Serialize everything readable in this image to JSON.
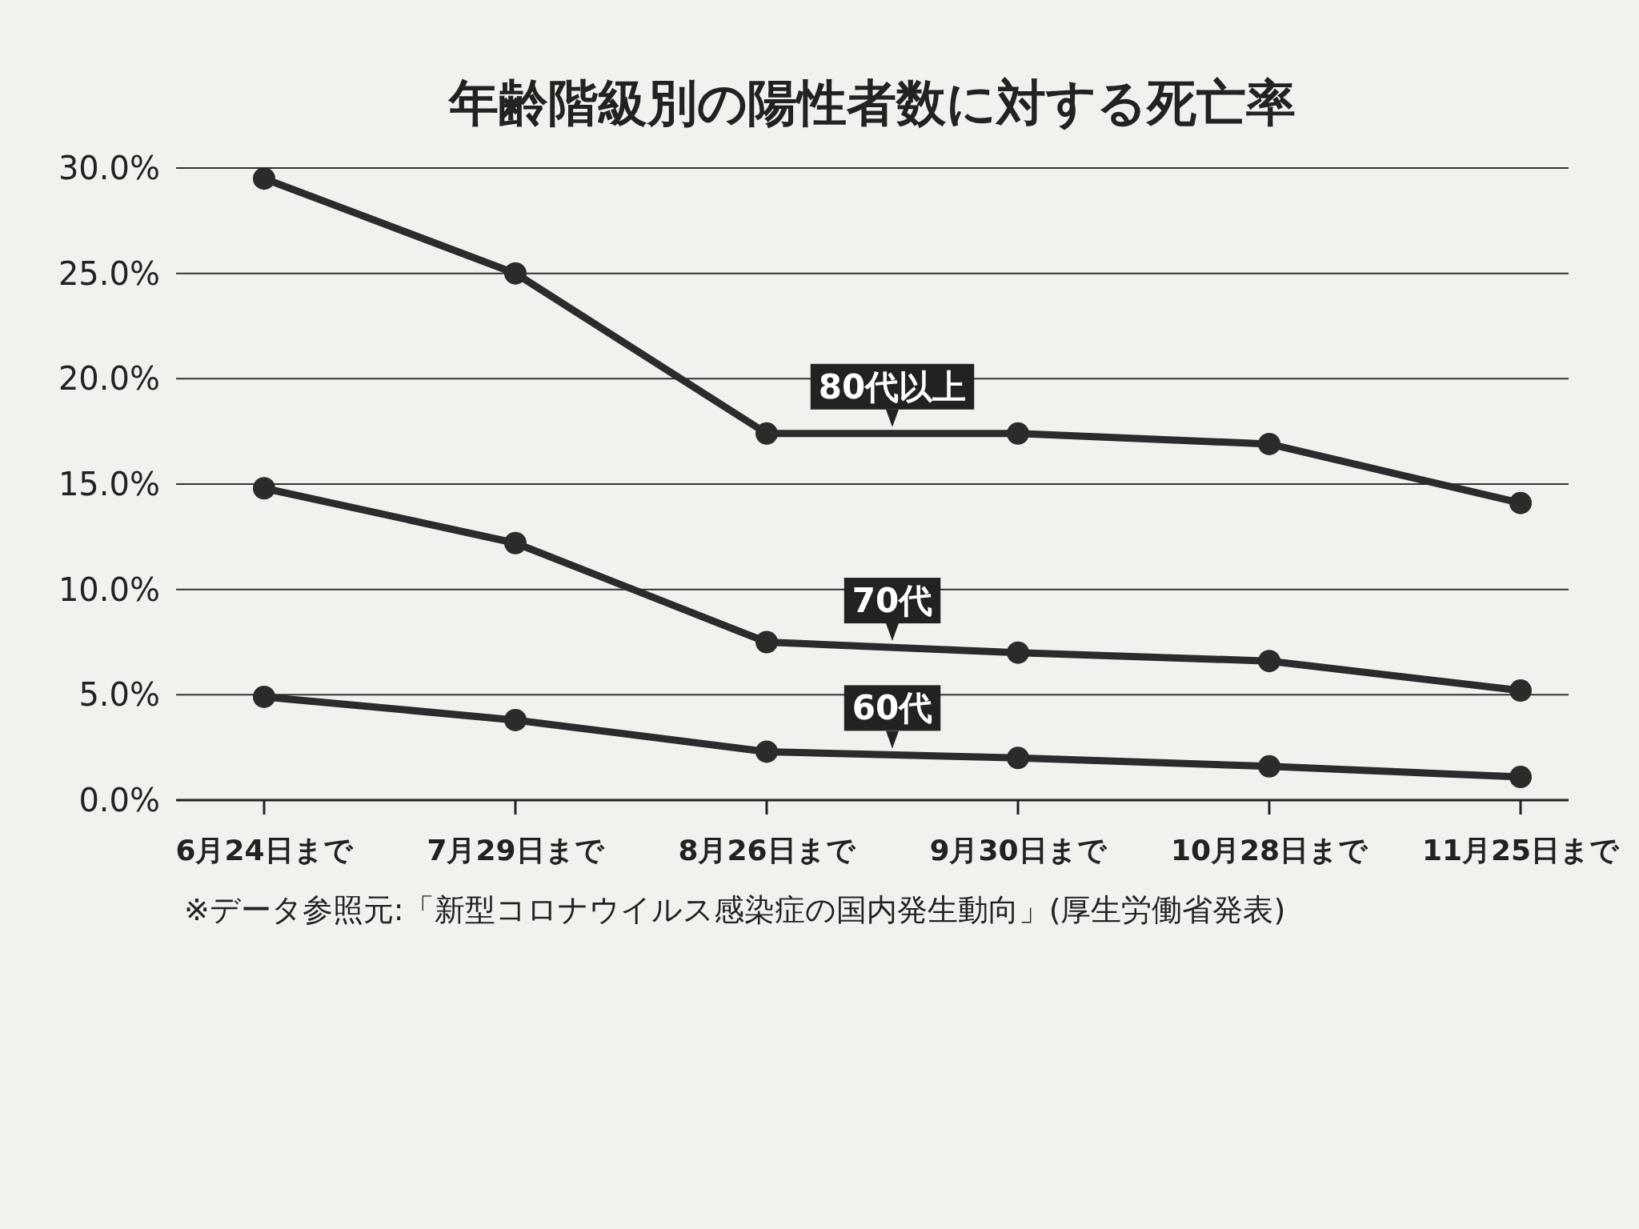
{
  "chart_data": {
    "type": "line",
    "title": "年齢階級別の陽性者数に対する死亡率",
    "categories": [
      "6月24日まで",
      "7月29日まで",
      "8月26日まで",
      "9月30日まで",
      "10月28日まで",
      "11月25日まで"
    ],
    "series": [
      {
        "name": "80代以上",
        "color": "#2b2b2b",
        "values": [
          29.5,
          25.0,
          17.4,
          17.4,
          16.9,
          14.1
        ]
      },
      {
        "name": "70代",
        "color": "#2b2b2b",
        "values": [
          14.8,
          12.2,
          7.5,
          7.0,
          6.6,
          5.2
        ]
      },
      {
        "name": "60代",
        "color": "#2b2b2b",
        "values": [
          4.9,
          3.8,
          2.3,
          2.0,
          1.6,
          1.1
        ]
      }
    ],
    "ylim": [
      0,
      30
    ],
    "yticks": [
      {
        "value": 0,
        "label": "0.0%"
      },
      {
        "value": 5,
        "label": "5.0%"
      },
      {
        "value": 10,
        "label": "10.0%"
      },
      {
        "value": 15,
        "label": "15.0%"
      },
      {
        "value": 20,
        "label": "20.0%"
      },
      {
        "value": 25,
        "label": "25.0%"
      },
      {
        "value": 30,
        "label": "30.0%"
      }
    ],
    "grid": "y",
    "marker": "circle",
    "line_style": "solid",
    "legend": false,
    "annotations": [
      "※データ参照元:「新型コロナウイルス感染症の国内発生動向」(厚生労働省発表)"
    ]
  }
}
